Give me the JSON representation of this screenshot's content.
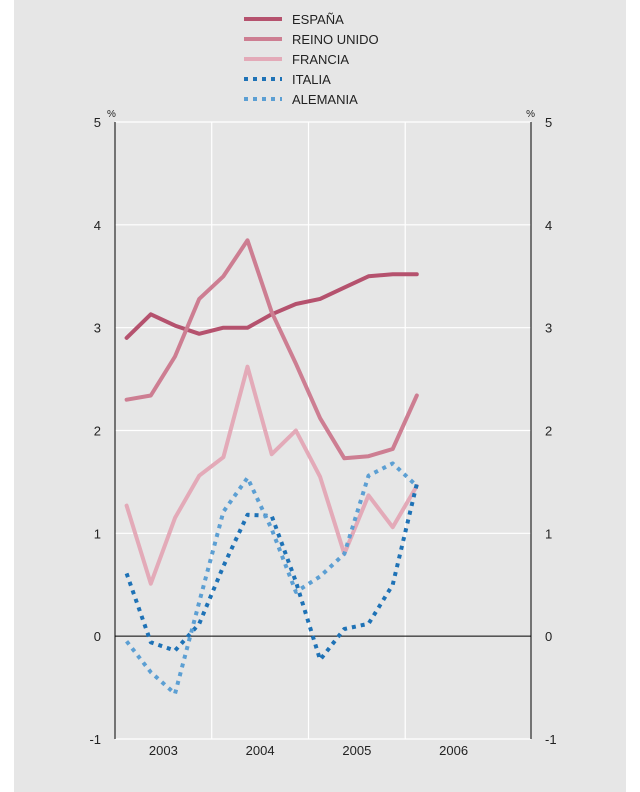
{
  "chart_data": {
    "type": "line",
    "title": "",
    "xlabel": "",
    "ylabel": "",
    "y_unit_left": "%",
    "y_unit_right": "%",
    "ylim": [
      -1,
      5
    ],
    "yticks": [
      -1,
      0,
      1,
      2,
      3,
      4,
      5
    ],
    "xlim": [
      2002.6,
      2006.9
    ],
    "x_tick_labels": [
      {
        "label": "2003",
        "x": 2003.1
      },
      {
        "label": "2004",
        "x": 2004.1
      },
      {
        "label": "2005",
        "x": 2005.1
      },
      {
        "label": "2006",
        "x": 2006.1
      }
    ],
    "year_boundaries": [
      2003.6,
      2004.6,
      2005.6
    ],
    "grid": true,
    "legend_position": "top",
    "series": [
      {
        "name": "ESPAÑA",
        "color": "#b5526e",
        "style": "solid",
        "width": 4,
        "x": [
          2002.72,
          2002.97,
          2003.22,
          2003.47,
          2003.72,
          2003.97,
          2004.22,
          2004.47,
          2004.72,
          2004.97,
          2005.22,
          2005.47,
          2005.72
        ],
        "y": [
          2.9,
          3.13,
          3.02,
          2.94,
          3.0,
          3.0,
          3.13,
          3.23,
          3.28,
          3.39,
          3.5,
          3.52,
          3.52
        ]
      },
      {
        "name": "REINO UNIDO",
        "color": "#cd7e92",
        "style": "solid",
        "width": 4,
        "x": [
          2002.72,
          2002.97,
          2003.22,
          2003.47,
          2003.72,
          2003.97,
          2004.22,
          2004.47,
          2004.72,
          2004.97,
          2005.22,
          2005.47,
          2005.72
        ],
        "y": [
          2.3,
          2.34,
          2.72,
          3.28,
          3.5,
          3.85,
          3.15,
          2.65,
          2.12,
          1.73,
          1.75,
          1.82,
          2.34
        ]
      },
      {
        "name": "FRANCIA",
        "color": "#e3aab8",
        "style": "solid",
        "width": 4,
        "x": [
          2002.72,
          2002.97,
          2003.22,
          2003.47,
          2003.72,
          2003.97,
          2004.22,
          2004.47,
          2004.72,
          2004.97,
          2005.22,
          2005.47,
          2005.72
        ],
        "y": [
          1.27,
          0.51,
          1.15,
          1.56,
          1.74,
          2.62,
          1.77,
          2.0,
          1.55,
          0.8,
          1.37,
          1.06,
          1.46
        ]
      },
      {
        "name": "ITALIA",
        "color": "#1e72b6",
        "style": "dotted",
        "width": 4,
        "x": [
          2002.72,
          2002.97,
          2003.22,
          2003.47,
          2003.72,
          2003.97,
          2004.22,
          2004.47,
          2004.72,
          2004.97,
          2005.22,
          2005.47,
          2005.72
        ],
        "y": [
          0.61,
          -0.06,
          -0.14,
          0.12,
          0.68,
          1.18,
          1.17,
          0.53,
          -0.23,
          0.07,
          0.12,
          0.5,
          1.48
        ]
      },
      {
        "name": "ALEMANIA",
        "color": "#5c9fd3",
        "style": "dotted",
        "width": 4,
        "x": [
          2002.72,
          2002.97,
          2003.22,
          2003.47,
          2003.72,
          2003.97,
          2004.22,
          2004.47,
          2004.72,
          2004.97,
          2005.22,
          2005.47,
          2005.72
        ],
        "y": [
          -0.05,
          -0.35,
          -0.56,
          0.33,
          1.21,
          1.54,
          1.04,
          0.43,
          0.58,
          0.8,
          1.56,
          1.68,
          1.46
        ]
      }
    ]
  }
}
